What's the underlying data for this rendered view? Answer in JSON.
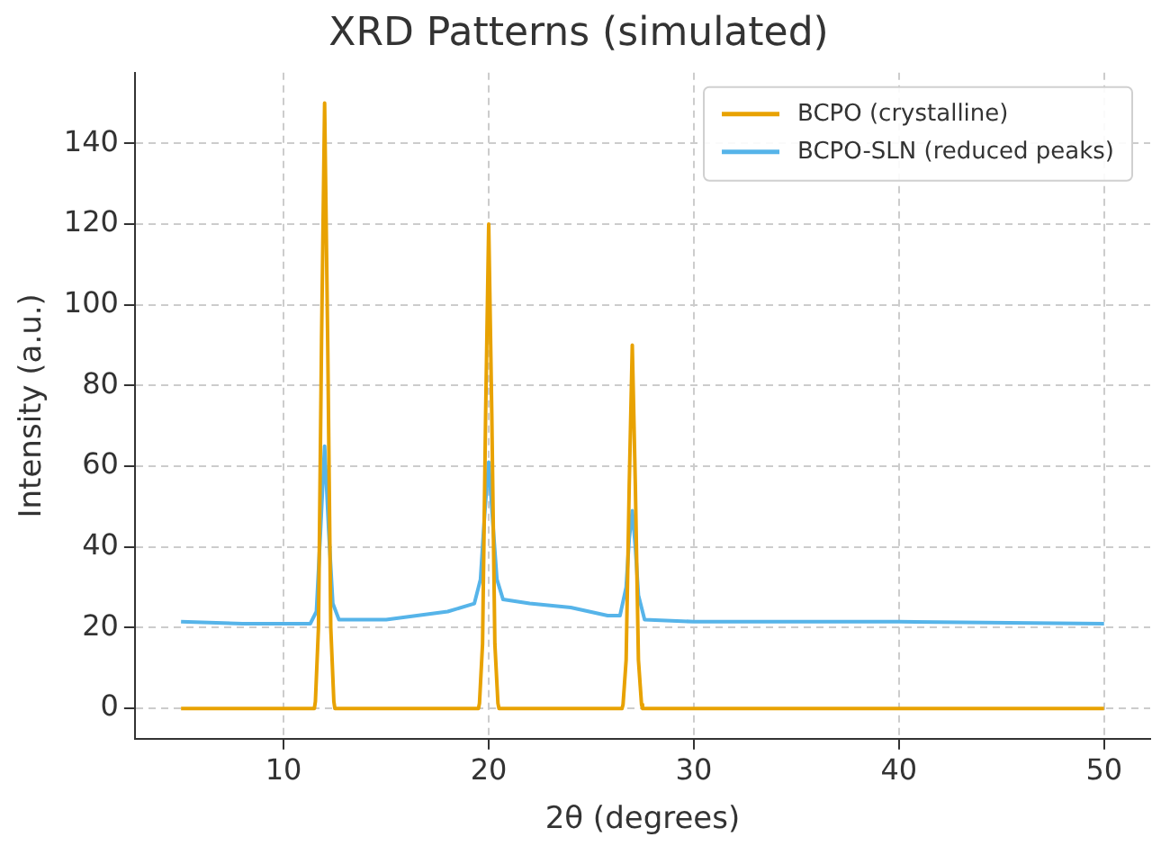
{
  "chart_data": {
    "type": "line",
    "title": "XRD Patterns (simulated)",
    "xlabel": "2θ (degrees)",
    "ylabel": "Intensity (a.u.)",
    "xlim": [
      2.75,
      52.25
    ],
    "xticks": [
      10,
      20,
      30,
      40,
      50
    ],
    "ylim": [
      -7.5,
      157.5
    ],
    "yticks": [
      0,
      20,
      40,
      60,
      80,
      100,
      120,
      140
    ],
    "grid": true,
    "legend": "top right",
    "marker": "none",
    "line_style": "solid",
    "series": [
      {
        "name": "BCPO (crystalline)",
        "color": "#e8a202",
        "x": [
          5,
          11.5,
          11.55,
          11.7,
          11.85,
          12,
          12.15,
          12.3,
          12.45,
          12.5,
          19.5,
          19.55,
          19.7,
          19.85,
          20,
          20.15,
          20.3,
          20.45,
          20.5,
          26.5,
          26.55,
          26.7,
          26.85,
          27,
          27.15,
          27.3,
          27.45,
          27.5,
          50
        ],
        "values": [
          0,
          0,
          1.7,
          20,
          91,
          150,
          91,
          20,
          1.7,
          0,
          0,
          1.3,
          16,
          73,
          120,
          73,
          16,
          1.3,
          0,
          0,
          1,
          12,
          55,
          90,
          55,
          12,
          1,
          0,
          0
        ]
      },
      {
        "name": "BCPO-SLN (reduced peaks)",
        "color": "#56b4e9",
        "x": [
          5,
          8,
          11.3,
          11.6,
          11.8,
          12,
          12.2,
          12.4,
          12.7,
          15,
          18,
          19.3,
          19.6,
          19.8,
          20,
          20.2,
          20.4,
          20.7,
          22,
          24,
          25.8,
          26.4,
          26.7,
          26.85,
          27,
          27.15,
          27.3,
          27.6,
          30,
          40,
          50
        ],
        "values": [
          21.5,
          21,
          21,
          24,
          44,
          65,
          44,
          26,
          22,
          22,
          24,
          26,
          32,
          48,
          61,
          46,
          32,
          27,
          26,
          25,
          23,
          23,
          30,
          42,
          49,
          40,
          28,
          22,
          21.5,
          21.5,
          21
        ]
      }
    ]
  }
}
